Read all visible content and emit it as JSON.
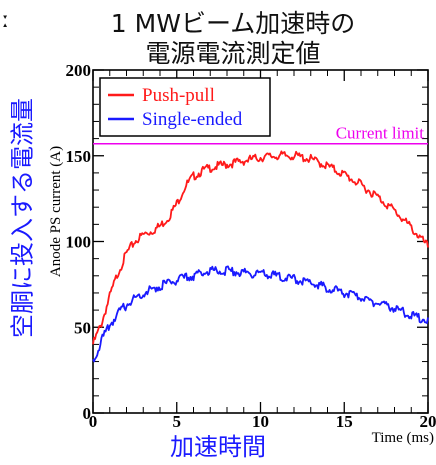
{
  "header": {
    "corner_glyph": "ː",
    "title_line1": "1 MWビーム加速時の",
    "title_line2": "電源電流測定値"
  },
  "labels": {
    "y_jp": "空胴に投入する電流量",
    "x_jp": "加速時間"
  },
  "colors": {
    "push_pull": "#ff1a1a",
    "single_ended": "#1a1aff",
    "limit": "#ee00ee",
    "axis": "#000000",
    "blue_text": "#1a1aff"
  },
  "chart_data": {
    "type": "line",
    "xlabel": "Time (ms)",
    "ylabel": "Anode PS current (A)",
    "xlim": [
      0,
      20
    ],
    "ylim": [
      0,
      200
    ],
    "x_ticks": [
      0,
      5,
      10,
      15,
      20
    ],
    "x_tick_labels": [
      "0",
      "5",
      "10",
      "15",
      "20"
    ],
    "y_ticks": [
      0,
      50,
      100,
      150,
      200
    ],
    "y_tick_labels": [
      "0",
      "50",
      "100",
      "150",
      "200"
    ],
    "legend_position": "top-left",
    "series": [
      {
        "name": "Push-pull",
        "color": "#ff1a1a",
        "x": [
          0,
          0.5,
          1,
          1.5,
          2,
          2.5,
          3,
          3.5,
          4,
          4.5,
          5,
          5.5,
          6,
          6.5,
          7,
          8,
          9,
          10,
          11,
          12,
          13,
          14,
          15,
          16,
          17,
          18,
          19,
          20
        ],
        "y": [
          40,
          52,
          68,
          82,
          93,
          100,
          104,
          106,
          109,
          114,
          122,
          132,
          138,
          141,
          143,
          145,
          147,
          149,
          150,
          150,
          148,
          144,
          139,
          133,
          126,
          118,
          108,
          97
        ]
      },
      {
        "name": "Single-ended",
        "color": "#1a1aff",
        "x": [
          0,
          0.5,
          1,
          1.5,
          2,
          2.5,
          3,
          3.5,
          4,
          4.5,
          5,
          5.5,
          6,
          6.5,
          7,
          8,
          9,
          10,
          11,
          12,
          13,
          14,
          15,
          16,
          17,
          18,
          19,
          20
        ],
        "y": [
          30,
          42,
          51,
          58,
          63,
          67,
          70,
          72,
          74,
          76,
          77,
          79,
          80,
          82,
          83,
          83,
          82,
          81,
          80,
          78,
          76,
          73,
          70,
          67,
          64,
          61,
          57,
          54
        ]
      }
    ],
    "annotations": [
      {
        "text": "Current limit",
        "y": 157,
        "color": "#ee00ee"
      }
    ]
  }
}
